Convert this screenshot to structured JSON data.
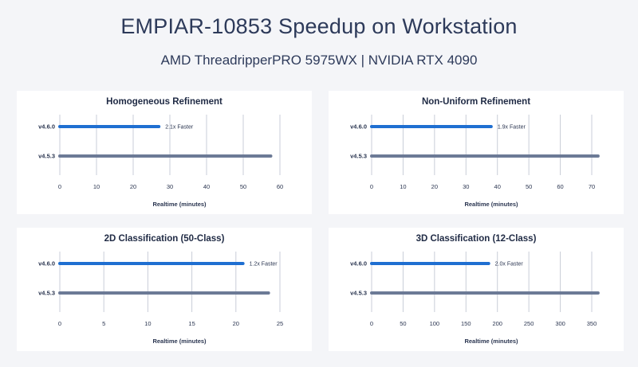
{
  "title": "EMPIAR-10853 Speedup on Workstation",
  "subtitle": "AMD ThreadripperPRO 5975WX | NVIDIA RTX 4090",
  "colors": {
    "new": "#1f6fd1",
    "old": "#6c7a96",
    "grid": "#c9cdd8"
  },
  "chart_data": [
    {
      "type": "bar",
      "orientation": "horizontal",
      "title": "Homogeneous Refinement",
      "categories": [
        "v4.6.0",
        "v4.5.3"
      ],
      "values": [
        27,
        57.5
      ],
      "annotations": [
        "2.1x Faster",
        ""
      ],
      "xlabel": "Realtime (minutes)",
      "xlim": [
        0,
        60
      ],
      "xticks": [
        0,
        10,
        20,
        30,
        40,
        50,
        60
      ],
      "grid": true
    },
    {
      "type": "bar",
      "orientation": "horizontal",
      "title": "Non-Uniform Refinement",
      "categories": [
        "v4.6.0",
        "v4.5.3"
      ],
      "values": [
        38,
        72
      ],
      "annotations": [
        "1.9x Faster",
        ""
      ],
      "xlabel": "Realtime (minutes)",
      "xlim": [
        0,
        70
      ],
      "xticks": [
        0,
        10,
        20,
        30,
        40,
        50,
        60,
        70
      ],
      "grid": true
    },
    {
      "type": "bar",
      "orientation": "horizontal",
      "title": "2D Classification (50-Class)",
      "categories": [
        "v4.6.0",
        "v4.5.3"
      ],
      "values": [
        20.8,
        23.7
      ],
      "annotations": [
        "1.2x Faster",
        ""
      ],
      "xlabel": "Realtime (minutes)",
      "xlim": [
        0,
        25
      ],
      "xticks": [
        0,
        5,
        10,
        15,
        20,
        25
      ],
      "grid": true
    },
    {
      "type": "bar",
      "orientation": "horizontal",
      "title": "3D Classification (12-Class)",
      "categories": [
        "v4.6.0",
        "v4.5.3"
      ],
      "values": [
        186,
        360
      ],
      "annotations": [
        "2.0x Faster",
        ""
      ],
      "xlabel": "Realtime (minutes)",
      "xlim": [
        0,
        350
      ],
      "xticks": [
        0,
        50,
        100,
        150,
        200,
        250,
        300,
        350
      ],
      "grid": true
    }
  ]
}
